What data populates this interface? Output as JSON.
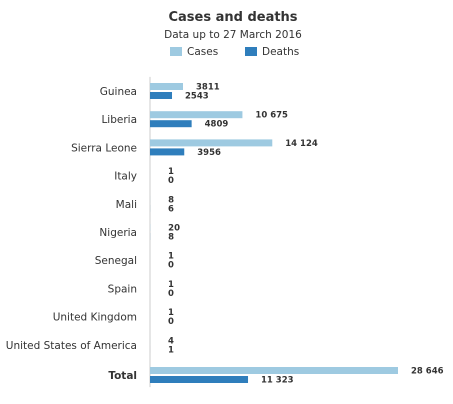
{
  "chart_data": {
    "type": "bar",
    "orientation": "horizontal",
    "title": "Cases and deaths",
    "subtitle": "Data up to 27 March 2016",
    "legend_position": "top",
    "categories": [
      "Guinea",
      "Liberia",
      "Sierra Leone",
      "Italy",
      "Mali",
      "Nigeria",
      "Senegal",
      "Spain",
      "United Kingdom",
      "United States of America",
      "Total"
    ],
    "series": [
      {
        "name": "Cases",
        "color": "#9ecae1",
        "values": [
          3811,
          10675,
          14124,
          1,
          8,
          20,
          1,
          1,
          1,
          4,
          28646
        ],
        "labels": [
          "3811",
          "10 675",
          "14 124",
          "1",
          "8",
          "20",
          "1",
          "1",
          "1",
          "4",
          "28 646"
        ]
      },
      {
        "name": "Deaths",
        "color": "#2f7ebc",
        "values": [
          2543,
          4809,
          3956,
          0,
          6,
          8,
          0,
          0,
          0,
          1,
          11323
        ],
        "labels": [
          "2543",
          "4809",
          "3956",
          "0",
          "6",
          "8",
          "0",
          "0",
          "0",
          "1",
          "11 323"
        ]
      }
    ],
    "xlim": [
      0,
      28646
    ],
    "grid": false
  }
}
